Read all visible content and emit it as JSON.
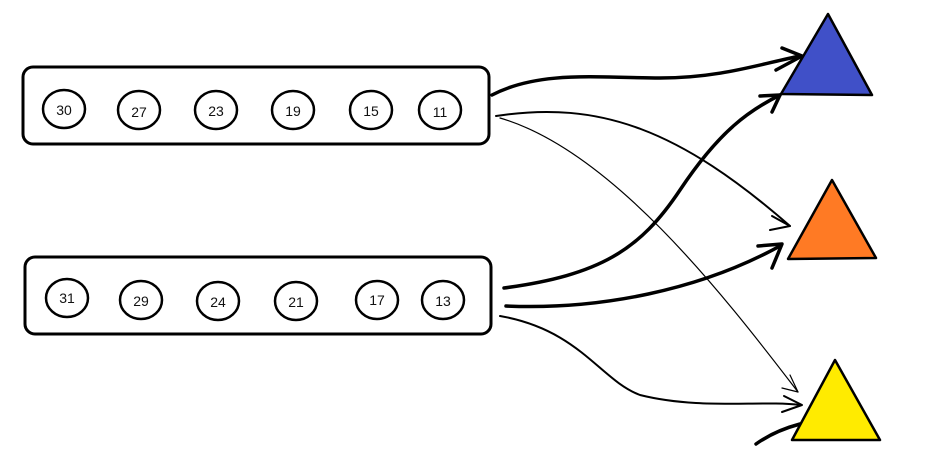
{
  "groups": [
    {
      "id": "top",
      "values": [
        "30",
        "27",
        "23",
        "19",
        "15",
        "11"
      ]
    },
    {
      "id": "bottom",
      "values": [
        "31",
        "29",
        "24",
        "21",
        "17",
        "13"
      ]
    }
  ],
  "targets": [
    {
      "id": "blue",
      "color": "#4050c8"
    },
    {
      "id": "orange",
      "color": "#ff7a24"
    },
    {
      "id": "yellow",
      "color": "#ffeb00"
    }
  ]
}
